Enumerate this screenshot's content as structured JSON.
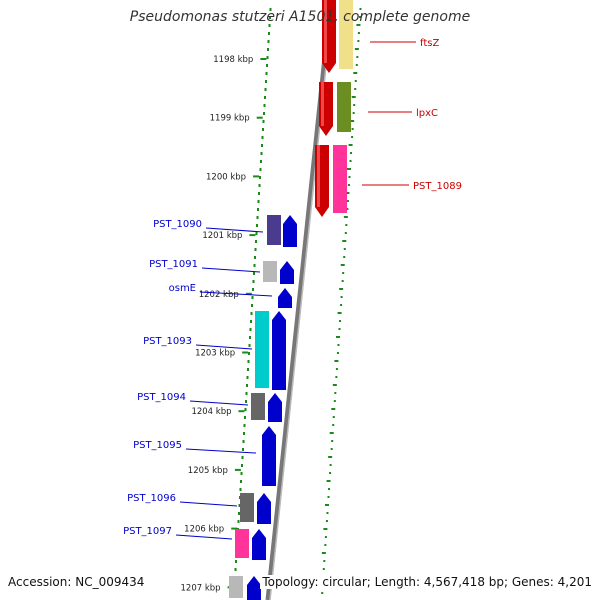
{
  "title": "Pseudomonas stutzeri A1501, complete genome",
  "footer": {
    "accession": "Accession: NC_009434",
    "summary": "Topology: circular; Length: 4,567,418 bp; Genes: 4,201"
  },
  "ticks": [
    {
      "label": "1198 kbp",
      "kbp": 1198
    },
    {
      "label": "1199 kbp",
      "kbp": 1199
    },
    {
      "label": "1200 kbp",
      "kbp": 1200
    },
    {
      "label": "1201 kbp",
      "kbp": 1201
    },
    {
      "label": "1202 kbp",
      "kbp": 1202
    },
    {
      "label": "1203 kbp",
      "kbp": 1203
    },
    {
      "label": "1204 kbp",
      "kbp": 1204
    },
    {
      "label": "1205 kbp",
      "kbp": 1205
    },
    {
      "label": "1206 kbp",
      "kbp": 1206
    },
    {
      "label": "1207 kbp",
      "kbp": 1207
    }
  ],
  "genes_forward": [
    {
      "label": "ftsZ",
      "color": "#cc0000",
      "cog_color": "#f0e08a"
    },
    {
      "label": "lpxC",
      "color": "#cc0000",
      "cog_color": "#6b8e23"
    },
    {
      "label": "PST_1089",
      "color": "#cc0000",
      "cog_color": "#ff3399"
    }
  ],
  "genes_reverse": [
    {
      "label": "PST_1090",
      "color": "#0000cc",
      "cog_color": "#4b3b8f"
    },
    {
      "label": "PST_1091",
      "color": "#0000cc",
      "cog_color": "#b8b8b8"
    },
    {
      "label": "osmE",
      "color": "#0000cc",
      "cog_color": ""
    },
    {
      "label": "PST_1093",
      "color": "#0000cc",
      "cog_color": "#00cccc"
    },
    {
      "label": "PST_1094",
      "color": "#0000cc",
      "cog_color": "#666666"
    },
    {
      "label": "PST_1095",
      "color": "#0000cc",
      "cog_color": ""
    },
    {
      "label": "PST_1096",
      "color": "#0000cc",
      "cog_color": "#666666"
    },
    {
      "label": "PST_1097",
      "color": "#0000cc",
      "cog_color": "#ff3399"
    },
    {
      "label": "",
      "color": "#0000cc",
      "cog_color": "#b8b8b8"
    }
  ]
}
